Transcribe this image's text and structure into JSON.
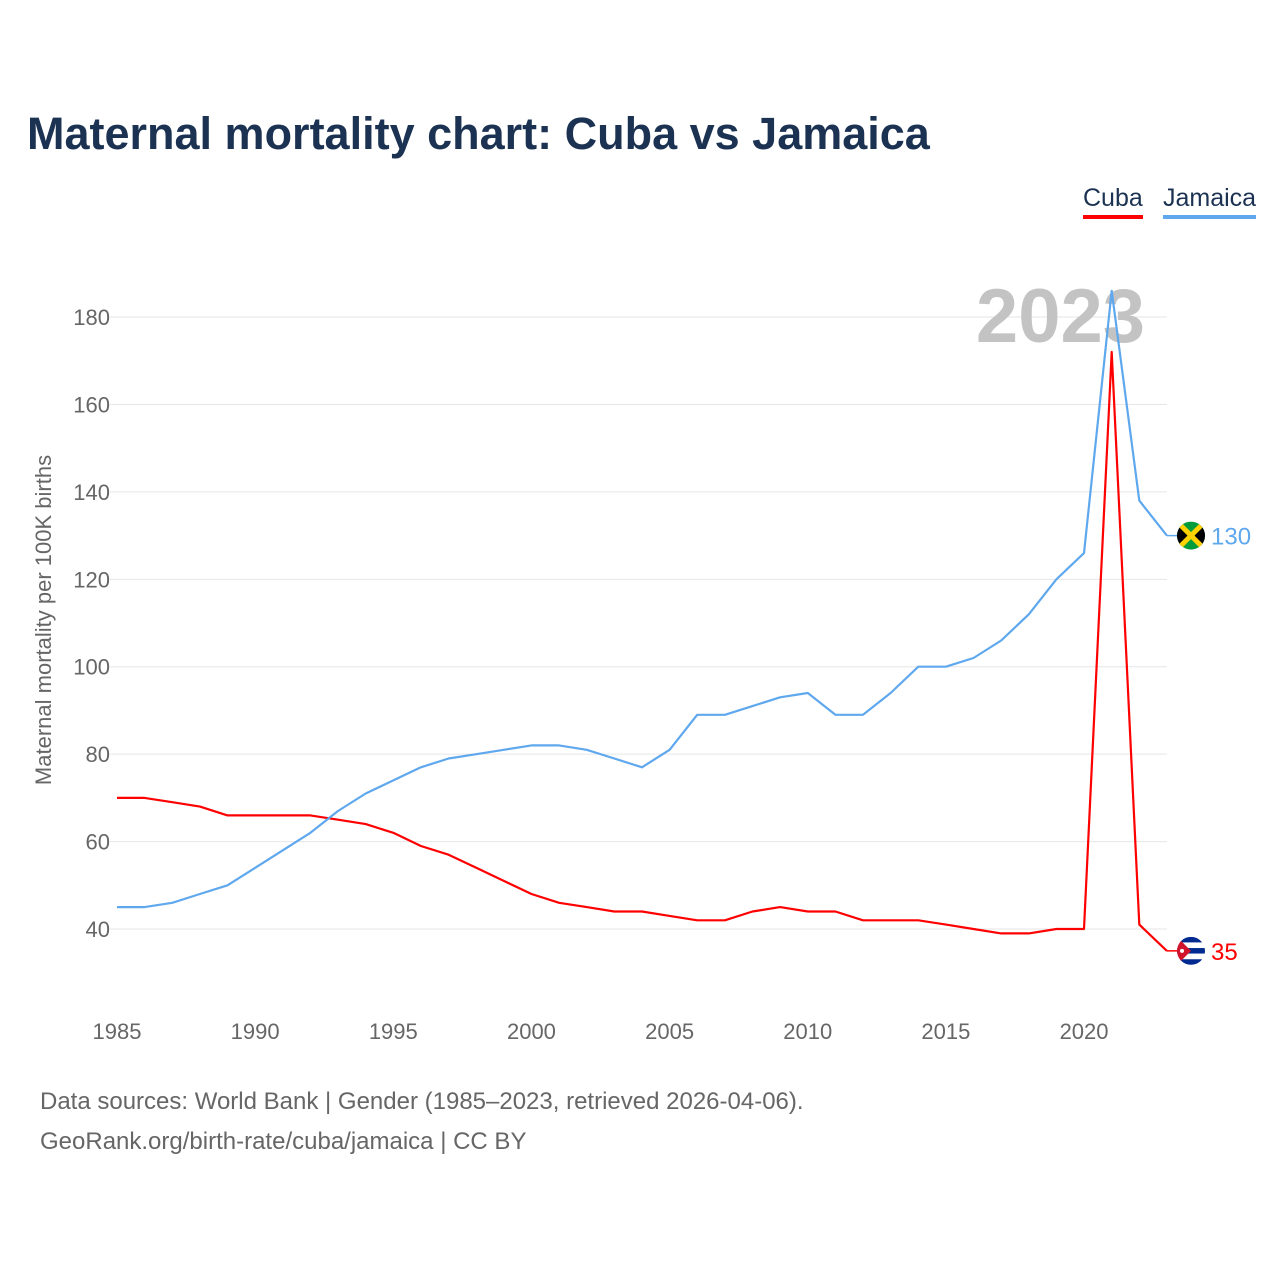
{
  "chart_data": {
    "type": "line",
    "title": "Maternal mortality chart: Cuba vs Jamaica",
    "ylabel": "Maternal mortality per 100K births",
    "xlabel": "",
    "year_label": "2023",
    "xlim": [
      1985,
      2023
    ],
    "ylim": [
      28,
      192
    ],
    "x_ticks": [
      1985,
      1990,
      1995,
      2000,
      2005,
      2010,
      2015,
      2020
    ],
    "y_ticks": [
      40,
      60,
      80,
      100,
      120,
      140,
      160,
      180
    ],
    "grid": true,
    "legend_placement": "top-right",
    "x": [
      1985,
      1986,
      1987,
      1988,
      1989,
      1990,
      1991,
      1992,
      1993,
      1994,
      1995,
      1996,
      1997,
      1998,
      1999,
      2000,
      2001,
      2002,
      2003,
      2004,
      2005,
      2006,
      2007,
      2008,
      2009,
      2010,
      2011,
      2012,
      2013,
      2014,
      2015,
      2016,
      2017,
      2018,
      2019,
      2020,
      2021,
      2022,
      2023
    ],
    "series": [
      {
        "name": "Cuba",
        "color": "#ff0000",
        "end_label": "35",
        "values": [
          70,
          70,
          69,
          68,
          66,
          66,
          66,
          66,
          65,
          64,
          62,
          59,
          57,
          54,
          51,
          48,
          46,
          45,
          44,
          44,
          43,
          42,
          42,
          44,
          45,
          44,
          44,
          42,
          42,
          42,
          41,
          40,
          39,
          39,
          40,
          40,
          172,
          41,
          35
        ]
      },
      {
        "name": "Jamaica",
        "color": "#5fa8ee",
        "end_label": "130",
        "values": [
          45,
          45,
          46,
          48,
          50,
          54,
          58,
          62,
          67,
          71,
          74,
          77,
          79,
          80,
          81,
          82,
          82,
          81,
          79,
          77,
          81,
          89,
          89,
          91,
          93,
          94,
          89,
          89,
          94,
          100,
          100,
          102,
          106,
          112,
          120,
          126,
          186,
          138,
          130
        ]
      }
    ]
  },
  "footer": {
    "line1": "Data sources: World Bank | Gender (1985–2023, retrieved 2026-04-06).",
    "line2": "GeoRank.org/birth-rate/cuba/jamaica | CC BY"
  }
}
